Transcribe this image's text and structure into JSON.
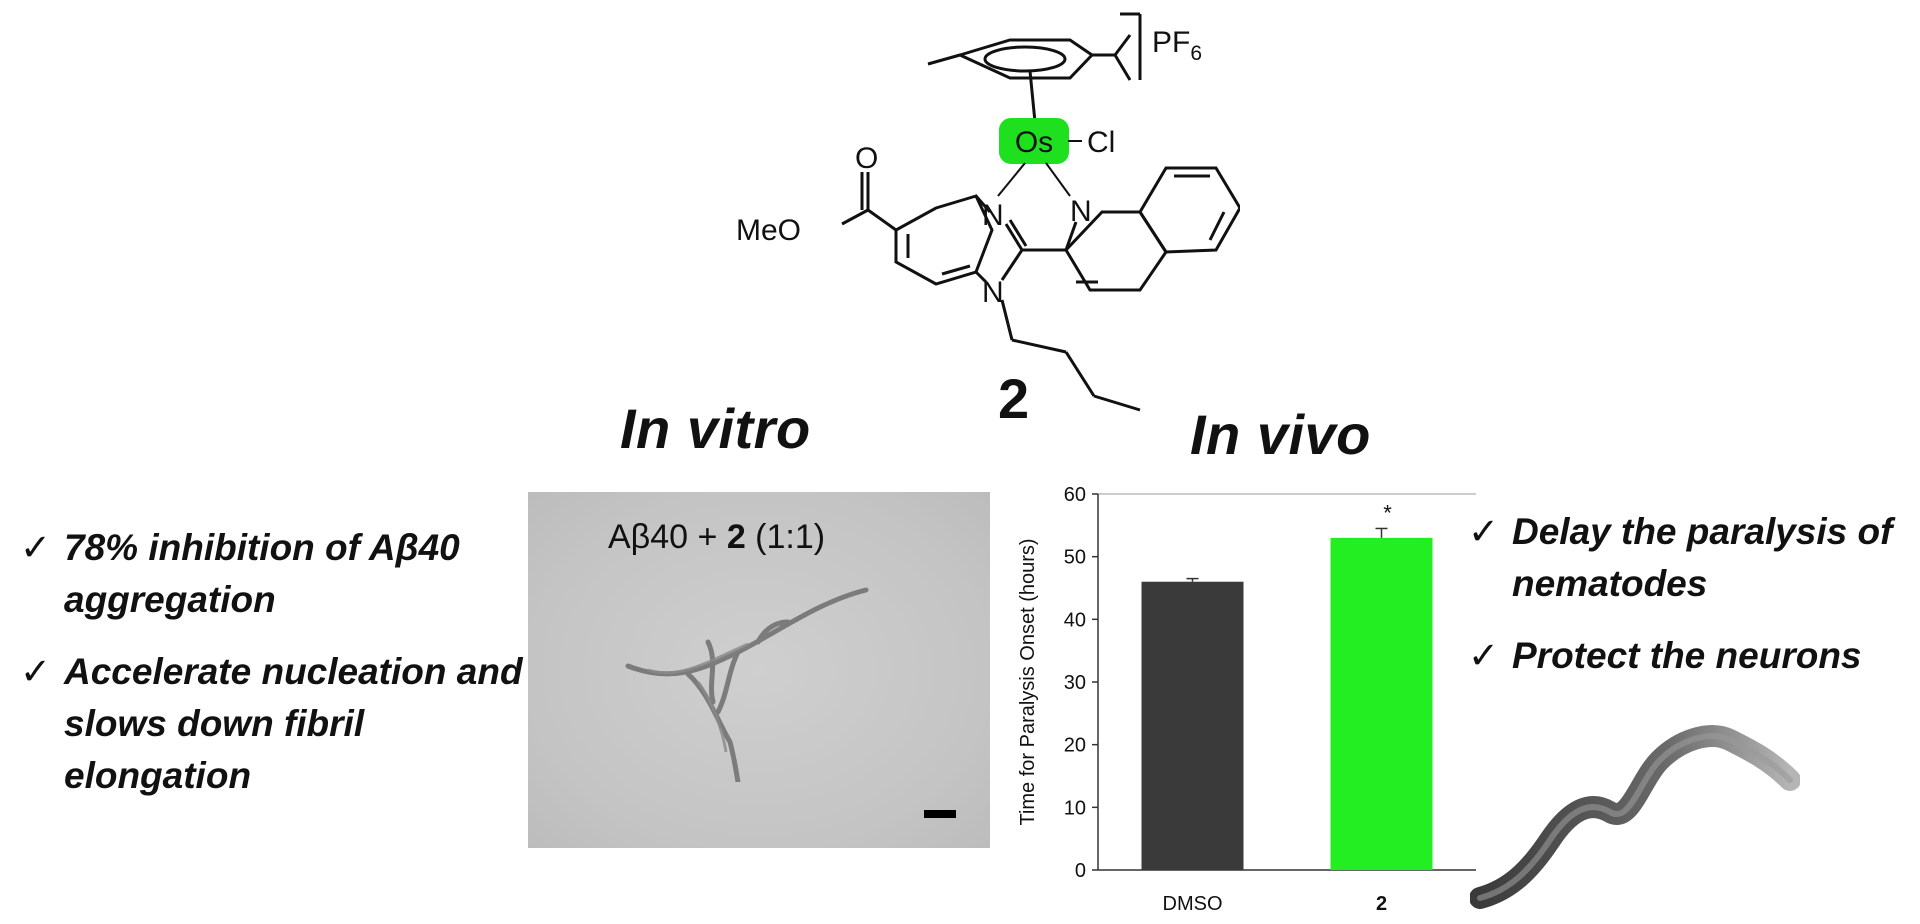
{
  "molecule": {
    "counterion": "PF",
    "counterion_sub": "6",
    "metal": "Os",
    "ligand_cl": "Cl",
    "ester_label": "MeO",
    "carbonyl_o": "O",
    "n1": "N",
    "n2": "N",
    "n3": "N",
    "compound_number": "2",
    "highlight_color": "#1ee01e"
  },
  "in_vitro": {
    "title": "In vitro",
    "micrograph_label_prefix": "Aβ40 + ",
    "micrograph_label_bold": "2",
    "micrograph_label_suffix": " (1:1)",
    "bullets": [
      "78% inhibition  of Aβ40 aggregation",
      "Accelerate nucleation and slows down fibril elongation"
    ],
    "check_symbol": "✓"
  },
  "in_vivo": {
    "title": "In vivo",
    "bullets": [
      "Delay the paralysis of nematodes",
      "Protect the neurons"
    ],
    "check_symbol": "✓"
  },
  "chart_data": {
    "type": "bar",
    "categories": [
      "DMSO",
      "2"
    ],
    "values": [
      46,
      53
    ],
    "errors": [
      0.5,
      1.5
    ],
    "significance": [
      "",
      "*"
    ],
    "colors": [
      "#3a3a3a",
      "#22ee22"
    ],
    "title": "",
    "xlabel": "",
    "ylabel": "Time for Paralysis Onset (hours)",
    "ylim": [
      0,
      60
    ],
    "yticks": [
      0,
      10,
      20,
      30,
      40,
      50,
      60
    ],
    "grid": false,
    "legend": "none"
  }
}
